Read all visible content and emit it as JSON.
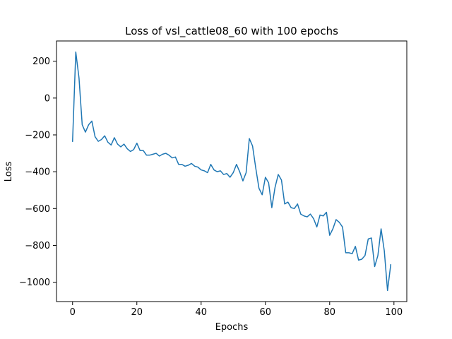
{
  "chart_data": {
    "type": "line",
    "title": "Loss of vsl_cattle08_60 with 100 epochs",
    "xlabel": "Epochs",
    "ylabel": "Loss",
    "xlim": [
      -5,
      104
    ],
    "ylim": [
      -1105,
      310
    ],
    "xticks": [
      0,
      20,
      40,
      60,
      80,
      100
    ],
    "yticks": [
      200,
      0,
      -200,
      -400,
      -600,
      -800,
      -1000
    ],
    "ytick_labels": [
      "200",
      "0",
      "−200",
      "−400",
      "−600",
      "−800",
      "−1000"
    ],
    "grid": false,
    "legend": "none",
    "series": [
      {
        "color": "#1f77b4",
        "x": [
          0,
          1,
          2,
          3,
          4,
          5,
          6,
          7,
          8,
          9,
          10,
          11,
          12,
          13,
          14,
          15,
          16,
          17,
          18,
          19,
          20,
          21,
          22,
          23,
          24,
          25,
          26,
          27,
          28,
          29,
          30,
          31,
          32,
          33,
          34,
          35,
          36,
          37,
          38,
          39,
          40,
          41,
          42,
          43,
          44,
          45,
          46,
          47,
          48,
          49,
          50,
          51,
          52,
          53,
          54,
          55,
          56,
          57,
          58,
          59,
          60,
          61,
          62,
          63,
          64,
          65,
          66,
          67,
          68,
          69,
          70,
          71,
          72,
          73,
          74,
          75,
          76,
          77,
          78,
          79,
          80,
          81,
          82,
          83,
          84,
          85,
          86,
          87,
          88,
          89,
          90,
          91,
          92,
          93,
          94,
          95,
          96,
          97,
          98,
          99
        ],
        "values": [
          -235,
          250,
          110,
          -145,
          -185,
          -145,
          -125,
          -210,
          -235,
          -225,
          -205,
          -240,
          -255,
          -215,
          -250,
          -265,
          -250,
          -275,
          -290,
          -280,
          -245,
          -285,
          -285,
          -310,
          -310,
          -305,
          -300,
          -315,
          -305,
          -300,
          -310,
          -325,
          -320,
          -360,
          -360,
          -370,
          -365,
          -355,
          -370,
          -375,
          -390,
          -395,
          -405,
          -360,
          -390,
          -400,
          -395,
          -415,
          -410,
          -430,
          -405,
          -360,
          -400,
          -450,
          -405,
          -220,
          -260,
          -380,
          -490,
          -525,
          -430,
          -460,
          -595,
          -485,
          -415,
          -445,
          -575,
          -565,
          -595,
          -600,
          -575,
          -630,
          -640,
          -645,
          -630,
          -655,
          -700,
          -635,
          -640,
          -620,
          -745,
          -710,
          -660,
          -675,
          -700,
          -840,
          -840,
          -845,
          -805,
          -880,
          -875,
          -855,
          -765,
          -760,
          -915,
          -855,
          -710,
          -830,
          -1045,
          -905
        ]
      }
    ]
  }
}
